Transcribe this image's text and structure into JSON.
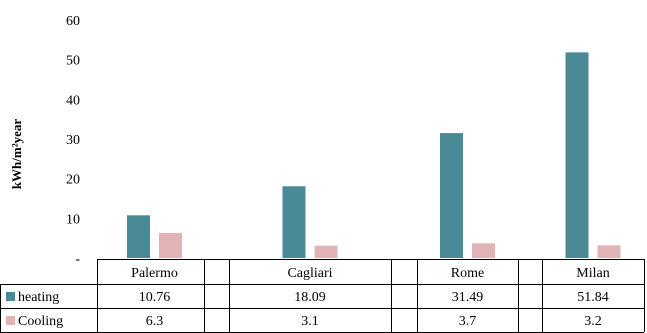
{
  "chart_data": {
    "type": "bar",
    "title": "",
    "xlabel": "",
    "ylabel": "kWh/m²year",
    "ylim": [
      0,
      60
    ],
    "yticks": [
      "-",
      "10",
      "20",
      "30",
      "40",
      "50",
      "60"
    ],
    "grid": false,
    "legend": "data table",
    "categories": [
      "Palermo",
      "Cagliari",
      "Rome",
      "Milan"
    ],
    "series": [
      {
        "name": "heating",
        "color": "#4a8a96",
        "values": [
          10.76,
          18.09,
          31.49,
          51.84
        ],
        "labels": [
          "10.76",
          "18.09",
          "31.49",
          "51.84"
        ]
      },
      {
        "name": "Cooling",
        "color": "#e2b3b5",
        "values": [
          6.3,
          3.1,
          3.7,
          3.2
        ],
        "labels": [
          "6.3",
          "3.1",
          "3.7",
          "3.2"
        ]
      }
    ]
  }
}
